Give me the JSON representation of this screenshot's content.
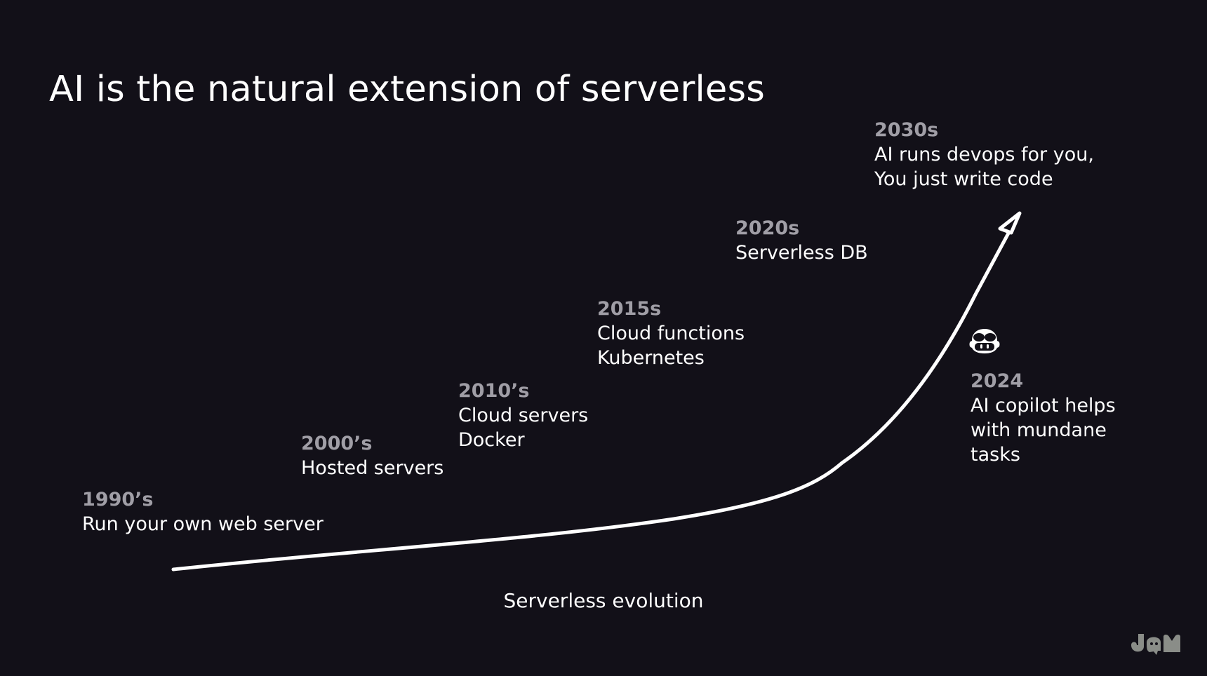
{
  "title": "AI is the natural extension of serverless",
  "caption": "Serverless evolution",
  "milestones": [
    {
      "year": "1990’s",
      "lines": [
        "Run your own web server"
      ]
    },
    {
      "year": "2000’s",
      "lines": [
        "Hosted servers"
      ]
    },
    {
      "year": "2010’s",
      "lines": [
        "Cloud servers",
        "Docker"
      ]
    },
    {
      "year": "2015s",
      "lines": [
        "Cloud functions",
        "Kubernetes"
      ]
    },
    {
      "year": "2020s",
      "lines": [
        "Serverless DB"
      ]
    },
    {
      "year": "2030s",
      "lines": [
        "AI runs devops for you,",
        "You just write code"
      ]
    },
    {
      "year": "2024",
      "lines": [
        "AI copilot helps",
        "with mundane",
        "tasks"
      ]
    }
  ],
  "icons": {
    "copilot": "copilot-icon",
    "logo": "jam-logo-icon"
  },
  "colors": {
    "background": "#121018",
    "text": "#ffffff",
    "year": "#a09ea6",
    "logo": "#8a8d88"
  }
}
